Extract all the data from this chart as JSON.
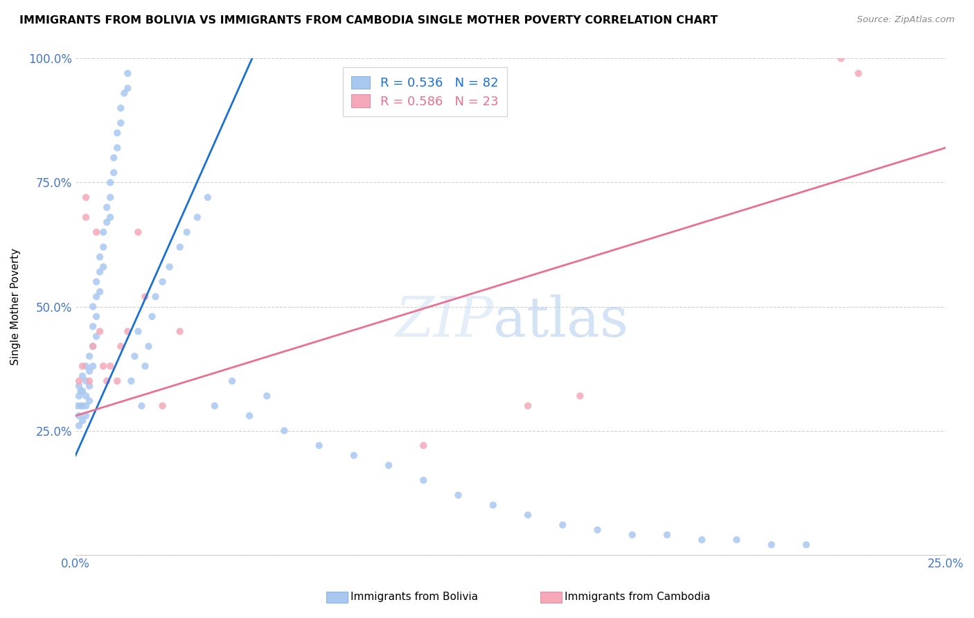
{
  "title": "IMMIGRANTS FROM BOLIVIA VS IMMIGRANTS FROM CAMBODIA SINGLE MOTHER POVERTY CORRELATION CHART",
  "source": "Source: ZipAtlas.com",
  "ylabel": "Single Mother Poverty",
  "xlim": [
    0.0,
    0.25
  ],
  "ylim": [
    0.0,
    1.0
  ],
  "xticks": [
    0.0,
    0.05,
    0.1,
    0.15,
    0.2,
    0.25
  ],
  "yticks": [
    0.0,
    0.25,
    0.5,
    0.75,
    1.0
  ],
  "xtick_labels": [
    "0.0%",
    "",
    "",
    "",
    "",
    "25.0%"
  ],
  "ytick_labels": [
    "",
    "25.0%",
    "50.0%",
    "75.0%",
    "100.0%"
  ],
  "bolivia_color": "#a8c8f0",
  "cambodia_color": "#f4a8b8",
  "bolivia_line_color": "#1a6fd4",
  "cambodia_line_color": "#e87090",
  "legend_bolivia": "R = 0.536   N = 82",
  "legend_cambodia": "R = 0.586   N = 23",
  "bolivia_line_x": [
    0.0,
    0.052
  ],
  "bolivia_line_y": [
    0.2,
    1.02
  ],
  "cambodia_line_x": [
    0.0,
    0.25
  ],
  "cambodia_line_y": [
    0.28,
    0.82
  ],
  "bolivia_x": [
    0.0005,
    0.001,
    0.001,
    0.001,
    0.001,
    0.0015,
    0.0015,
    0.002,
    0.002,
    0.002,
    0.002,
    0.003,
    0.003,
    0.003,
    0.003,
    0.003,
    0.004,
    0.004,
    0.004,
    0.004,
    0.005,
    0.005,
    0.005,
    0.005,
    0.006,
    0.006,
    0.006,
    0.006,
    0.007,
    0.007,
    0.007,
    0.008,
    0.008,
    0.008,
    0.009,
    0.009,
    0.01,
    0.01,
    0.01,
    0.011,
    0.011,
    0.012,
    0.012,
    0.013,
    0.013,
    0.014,
    0.015,
    0.015,
    0.016,
    0.017,
    0.018,
    0.019,
    0.02,
    0.021,
    0.022,
    0.023,
    0.025,
    0.027,
    0.03,
    0.032,
    0.035,
    0.038,
    0.04,
    0.045,
    0.05,
    0.055,
    0.06,
    0.07,
    0.08,
    0.09,
    0.1,
    0.11,
    0.12,
    0.13,
    0.14,
    0.15,
    0.16,
    0.17,
    0.18,
    0.19,
    0.2,
    0.21
  ],
  "bolivia_y": [
    0.3,
    0.34,
    0.32,
    0.28,
    0.26,
    0.33,
    0.3,
    0.36,
    0.33,
    0.3,
    0.27,
    0.38,
    0.35,
    0.32,
    0.3,
    0.28,
    0.4,
    0.37,
    0.34,
    0.31,
    0.5,
    0.46,
    0.42,
    0.38,
    0.55,
    0.52,
    0.48,
    0.44,
    0.6,
    0.57,
    0.53,
    0.65,
    0.62,
    0.58,
    0.7,
    0.67,
    0.75,
    0.72,
    0.68,
    0.8,
    0.77,
    0.85,
    0.82,
    0.9,
    0.87,
    0.93,
    0.97,
    0.94,
    0.35,
    0.4,
    0.45,
    0.3,
    0.38,
    0.42,
    0.48,
    0.52,
    0.55,
    0.58,
    0.62,
    0.65,
    0.68,
    0.72,
    0.3,
    0.35,
    0.28,
    0.32,
    0.25,
    0.22,
    0.2,
    0.18,
    0.15,
    0.12,
    0.1,
    0.08,
    0.06,
    0.05,
    0.04,
    0.04,
    0.03,
    0.03,
    0.02,
    0.02
  ],
  "cambodia_x": [
    0.001,
    0.002,
    0.003,
    0.003,
    0.004,
    0.005,
    0.006,
    0.007,
    0.008,
    0.009,
    0.01,
    0.012,
    0.013,
    0.015,
    0.018,
    0.02,
    0.025,
    0.03,
    0.1,
    0.13,
    0.145,
    0.22,
    0.225
  ],
  "cambodia_y": [
    0.35,
    0.38,
    0.72,
    0.68,
    0.35,
    0.42,
    0.65,
    0.45,
    0.38,
    0.35,
    0.38,
    0.35,
    0.42,
    0.45,
    0.65,
    0.52,
    0.3,
    0.45,
    0.22,
    0.3,
    0.32,
    1.0,
    0.97
  ]
}
